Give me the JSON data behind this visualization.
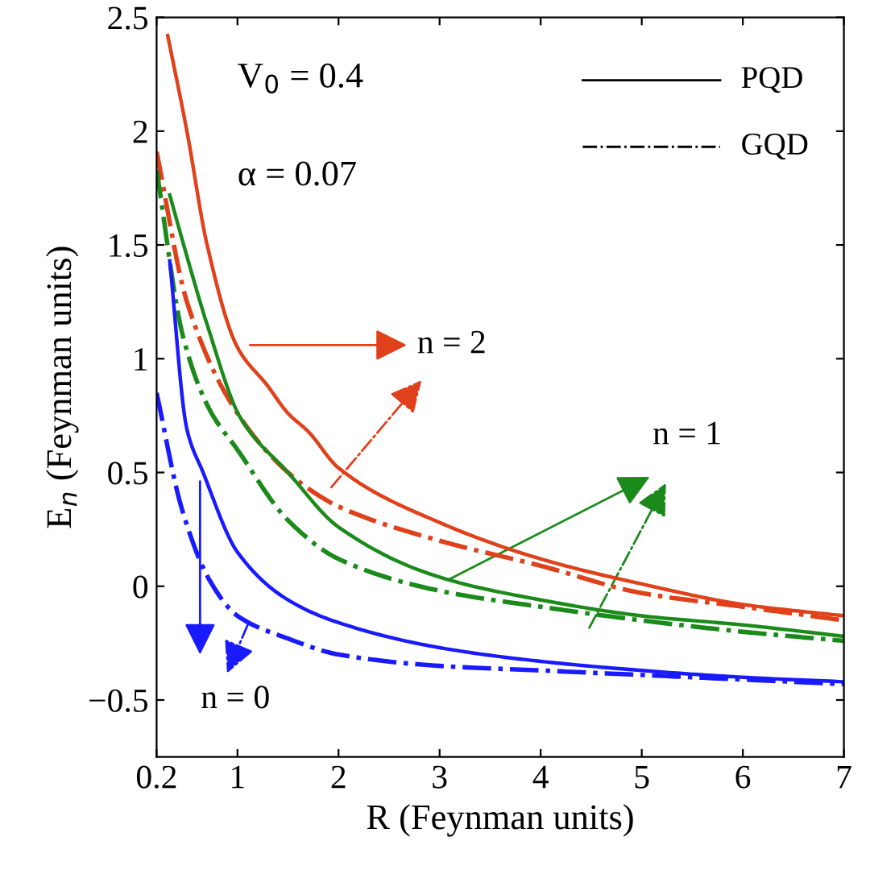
{
  "chart_data": {
    "type": "line",
    "xlabel": "R (Feynman units)",
    "ylabel": "E$_{n}$ (Feynman units)",
    "xlim": [
      0.2,
      7
    ],
    "ylim": [
      -0.75,
      2.5
    ],
    "xticks": [
      0.2,
      1,
      2,
      3,
      4,
      5,
      6,
      7
    ],
    "yticks": [
      {
        "value": -0.5,
        "label": "−0.5"
      },
      0,
      0.5,
      1,
      1.5,
      2,
      2.5
    ],
    "grid": false,
    "series": [
      {
        "color": "#e0401a",
        "line_style": "solid",
        "x": [
          0.31,
          0.5,
          0.7,
          1,
          1.3,
          1.5,
          1.7,
          2,
          3,
          4,
          5,
          6,
          7
        ],
        "values": [
          2.42,
          2.0,
          1.5,
          1.05,
          0.88,
          0.76,
          0.68,
          0.52,
          0.28,
          0.12,
          0.01,
          -0.08,
          -0.13
        ]
      },
      {
        "color": "#e0401a",
        "line_style": "dashdot",
        "x": [
          0.2,
          0.5,
          1,
          1.5,
          1.8,
          2,
          3,
          4,
          5,
          6,
          7
        ],
        "values": [
          1.91,
          1.25,
          0.76,
          0.5,
          0.4,
          0.35,
          0.2,
          0.09,
          -0.03,
          -0.09,
          -0.15
        ]
      },
      {
        "color": "#1a8a1a",
        "line_style": "solid",
        "x": [
          0.33,
          0.5,
          0.7,
          1.03,
          1.5,
          2,
          3,
          4,
          5,
          6,
          7
        ],
        "values": [
          1.72,
          1.45,
          1.15,
          0.74,
          0.5,
          0.26,
          0.04,
          -0.06,
          -0.13,
          -0.17,
          -0.22
        ]
      },
      {
        "color": "#1a8a1a",
        "line_style": "dashdot",
        "x": [
          0.2,
          0.46,
          0.72,
          1,
          1.5,
          2,
          3,
          4,
          5,
          6,
          7
        ],
        "values": [
          1.83,
          1.1,
          0.78,
          0.6,
          0.29,
          0.12,
          -0.02,
          -0.09,
          -0.15,
          -0.2,
          -0.24
        ]
      },
      {
        "color": "#1a1aff",
        "line_style": "solid",
        "x": [
          0.33,
          0.5,
          0.66,
          1,
          1.5,
          2,
          3,
          4,
          5,
          6,
          7
        ],
        "values": [
          1.43,
          0.69,
          0.5,
          0.15,
          -0.06,
          -0.16,
          -0.27,
          -0.33,
          -0.37,
          -0.4,
          -0.42
        ]
      },
      {
        "color": "#1a1aff",
        "line_style": "dashdot",
        "x": [
          0.2,
          0.45,
          0.72,
          1,
          1.5,
          2,
          3,
          4,
          5,
          6,
          7
        ],
        "values": [
          0.85,
          0.34,
          0.03,
          -0.13,
          -0.23,
          -0.3,
          -0.35,
          -0.37,
          -0.39,
          -0.41,
          -0.43
        ]
      }
    ],
    "annotations": [
      "PQD",
      "GQD",
      "V$_{0}$ = 0.4",
      "α = 0.07",
      {
        "text": "n = 2",
        "x": 1.9,
        "y": 0.42
      },
      {
        "text": "n = 1",
        "x": 3.05,
        "y": 0.02
      },
      {
        "text": "n = 0",
        "x": 0.63,
        "y": 0.48
      }
    ]
  }
}
